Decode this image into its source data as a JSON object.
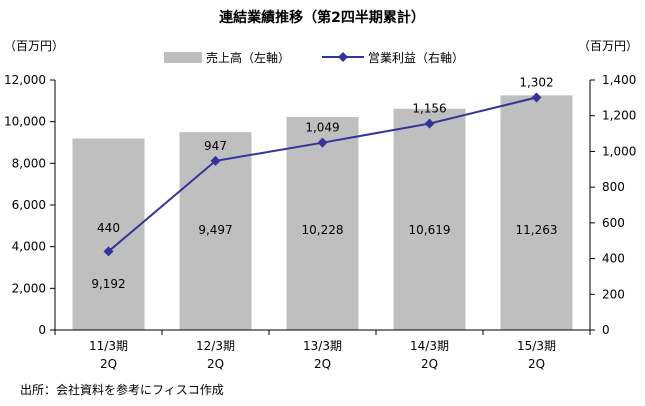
{
  "chart_data": {
    "type": "bar+line",
    "title": "連結業績推移（第2四半期累計）",
    "y_left_unit": "（百万円）",
    "y_right_unit": "（百万円）",
    "y_left_ticks": [
      "0",
      "2,000",
      "4,000",
      "6,000",
      "8,000",
      "10,000",
      "12,000"
    ],
    "y_right_ticks": [
      "0",
      "200",
      "400",
      "600",
      "800",
      "1,000",
      "1,200",
      "1,400"
    ],
    "ylim_left": [
      0,
      12000
    ],
    "ylim_right": [
      0,
      1400
    ],
    "categories": [
      [
        "11/3期",
        "2Q"
      ],
      [
        "12/3期",
        "2Q"
      ],
      [
        "13/3期",
        "2Q"
      ],
      [
        "14/3期",
        "2Q"
      ],
      [
        "15/3期",
        "2Q"
      ]
    ],
    "series": [
      {
        "name": "売上高（左軸）",
        "type": "bar",
        "axis": "left",
        "color": "#bfbfbf",
        "values": [
          9192,
          9497,
          10228,
          10619,
          11263
        ],
        "labels": [
          "9,192",
          "9,497",
          "10,228",
          "10,619",
          "11,263"
        ]
      },
      {
        "name": "営業利益（右軸）",
        "type": "line",
        "axis": "right",
        "color": "#333399",
        "values": [
          440,
          947,
          1049,
          1156,
          1302
        ],
        "labels": [
          "440",
          "947",
          "1,049",
          "1,156",
          "1,302"
        ]
      }
    ],
    "source": "出所：会社資料を参考にフィスコ作成"
  }
}
